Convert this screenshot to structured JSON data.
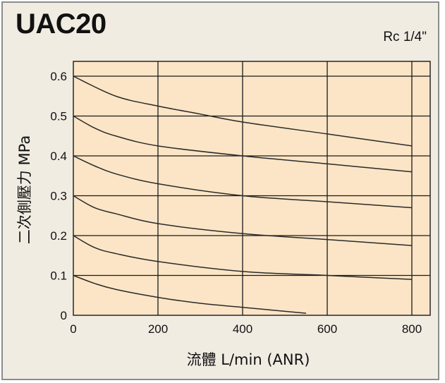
{
  "chart_data": {
    "type": "line",
    "title": "UAC20",
    "subtitle": "Rc 1/4\"",
    "xlabel": "流體 L/min (ANR)",
    "ylabel": "二次側壓力 MPa",
    "xlim": [
      0,
      800
    ],
    "ylim": [
      0,
      0.6
    ],
    "xticks": [
      "0",
      "200",
      "400",
      "600",
      "800"
    ],
    "yticks": [
      "0",
      "0.1",
      "0.2",
      "0.3",
      "0.4",
      "0.5",
      "0.6"
    ],
    "grid": true,
    "background": "#fbe5c6",
    "line_color": "#2a2a2a",
    "series": [
      {
        "x": [
          0,
          50,
          100,
          200,
          300,
          400,
          550
        ],
        "y": [
          0.1,
          0.08,
          0.065,
          0.045,
          0.03,
          0.02,
          0.005
        ]
      },
      {
        "x": [
          0,
          50,
          100,
          200,
          400,
          600,
          800
        ],
        "y": [
          0.2,
          0.17,
          0.155,
          0.135,
          0.11,
          0.1,
          0.09
        ]
      },
      {
        "x": [
          0,
          50,
          100,
          200,
          400,
          600,
          800
        ],
        "y": [
          0.3,
          0.27,
          0.255,
          0.23,
          0.205,
          0.19,
          0.175
        ]
      },
      {
        "x": [
          0,
          50,
          100,
          200,
          400,
          600,
          800
        ],
        "y": [
          0.4,
          0.375,
          0.355,
          0.33,
          0.3,
          0.285,
          0.27
        ]
      },
      {
        "x": [
          0,
          50,
          100,
          200,
          400,
          600,
          800
        ],
        "y": [
          0.5,
          0.47,
          0.45,
          0.425,
          0.4,
          0.38,
          0.36
        ]
      },
      {
        "x": [
          0,
          100,
          200,
          300,
          400,
          600,
          800
        ],
        "y": [
          0.6,
          0.55,
          0.525,
          0.505,
          0.485,
          0.455,
          0.425
        ]
      }
    ]
  }
}
